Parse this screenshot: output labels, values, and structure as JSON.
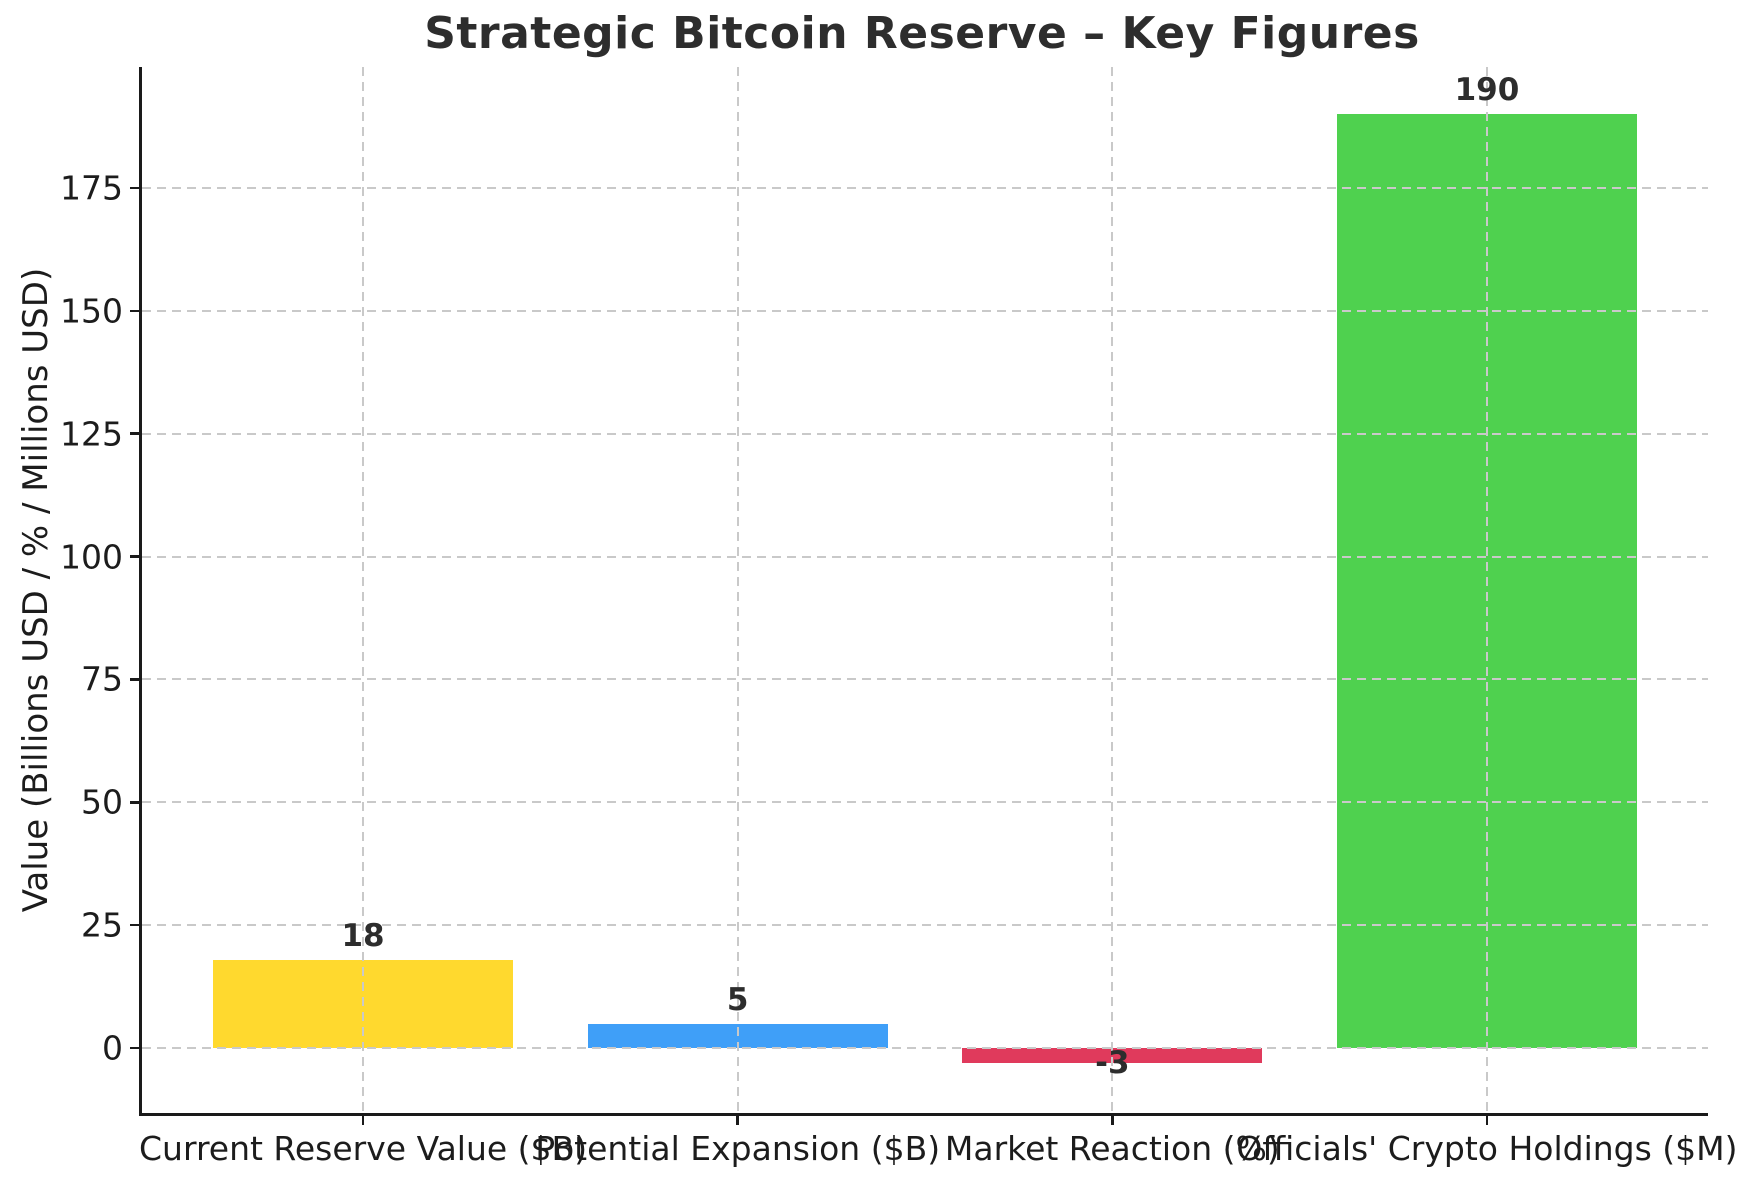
{
  "chart_data": {
    "type": "bar",
    "title": "Strategic Bitcoin Reserve – Key Figures",
    "xlabel": "",
    "ylabel": "Value (Billions USD / % / Millions USD)",
    "categories": [
      "Current Reserve Value ($B)",
      "Potential Expansion ($B)",
      "Market Reaction (%)",
      "Officials' Crypto Holdings ($M)"
    ],
    "values": [
      18,
      5,
      -3,
      190
    ],
    "value_labels": [
      "18",
      "5",
      "-3",
      "190"
    ],
    "bar_colors": [
      "#ffd92e",
      "#3f9ff8",
      "#e03a5c",
      "#4fd14f"
    ],
    "yticks": [
      0,
      25,
      50,
      75,
      100,
      125,
      150,
      175
    ],
    "ylim": [
      -13.2,
      199.6
    ],
    "xlim": [
      -0.59,
      3.59
    ],
    "bar_width": 0.8,
    "grid": "both, dashed, drawn above bars",
    "legend": "none"
  },
  "style_colors": {
    "grid": "#c9c9c9",
    "spine": "#1a1a1a",
    "tick_text": "#1c1c1c",
    "title_text": "#2d2d2d",
    "background": "#ffffff"
  }
}
